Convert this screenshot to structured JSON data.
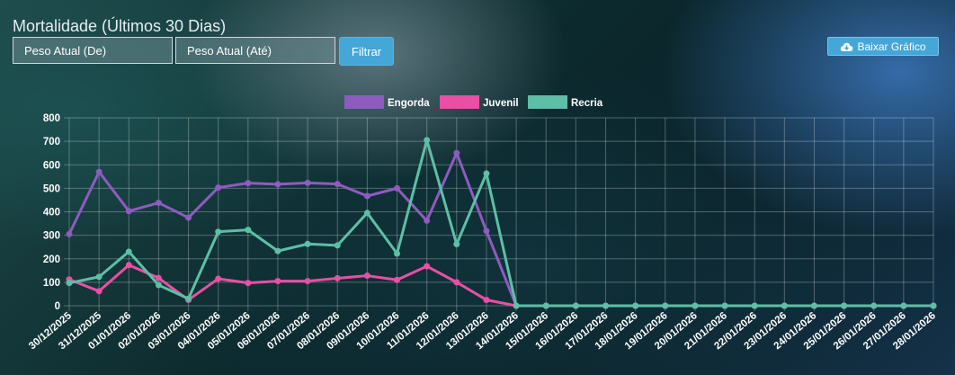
{
  "page": {
    "title": "Mortalidade (Últimos 30 Dias)"
  },
  "filters": {
    "from_placeholder": "Peso Atual (De)",
    "to_placeholder": "Peso Atual (Até)",
    "filter_label": "Filtrar"
  },
  "toolbar": {
    "download_label": "Baixar Gráfico",
    "download_icon": "cloud-download-icon"
  },
  "chart_data": {
    "type": "line",
    "title": "",
    "xlabel": "",
    "ylabel": "",
    "ylim": [
      0,
      800
    ],
    "yticks": [
      0,
      100,
      200,
      300,
      400,
      500,
      600,
      700,
      800
    ],
    "grid": true,
    "legend_position": "top-center",
    "categories": [
      "30/12/2025",
      "31/12/2025",
      "01/01/2026",
      "02/01/2026",
      "03/01/2026",
      "04/01/2026",
      "05/01/2026",
      "06/01/2026",
      "07/01/2026",
      "08/01/2026",
      "09/01/2026",
      "10/01/2026",
      "11/01/2026",
      "12/01/2026",
      "13/01/2026",
      "14/01/2026",
      "15/01/2026",
      "16/01/2026",
      "17/01/2026",
      "18/01/2026",
      "19/01/2026",
      "20/01/2026",
      "21/01/2026",
      "22/01/2026",
      "23/01/2026",
      "24/01/2026",
      "25/01/2026",
      "26/01/2026",
      "27/01/2026",
      "28/01/2026"
    ],
    "series": [
      {
        "name": "Engorda",
        "color": "#8e5bc0",
        "values": [
          305,
          570,
          403,
          438,
          375,
          503,
          522,
          517,
          523,
          518,
          467,
          500,
          362,
          650,
          318,
          0,
          0,
          0,
          0,
          0,
          0,
          0,
          0,
          0,
          0,
          0,
          0,
          0,
          0,
          0
        ]
      },
      {
        "name": "Juvenil",
        "color": "#e84fa5",
        "values": [
          112,
          62,
          173,
          118,
          25,
          115,
          97,
          105,
          105,
          117,
          128,
          110,
          168,
          100,
          25,
          0,
          0,
          0,
          0,
          0,
          0,
          0,
          0,
          0,
          0,
          0,
          0,
          0,
          0,
          0
        ]
      },
      {
        "name": "Recria",
        "color": "#5dbfa6",
        "values": [
          97,
          123,
          230,
          88,
          30,
          315,
          323,
          233,
          263,
          257,
          395,
          222,
          705,
          262,
          563,
          0,
          0,
          0,
          0,
          0,
          0,
          0,
          0,
          0,
          0,
          0,
          0,
          0,
          0,
          0
        ]
      }
    ]
  }
}
